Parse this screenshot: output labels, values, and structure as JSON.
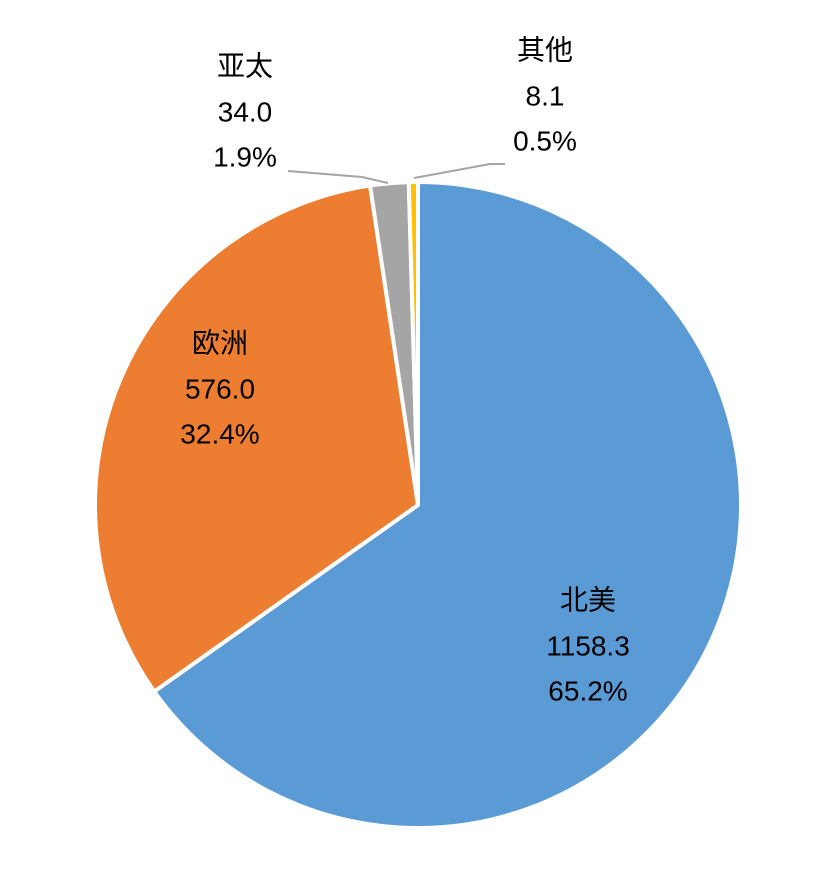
{
  "chart_data": {
    "type": "pie",
    "categories": [
      "北美",
      "欧洲",
      "亚太",
      "其他"
    ],
    "values": [
      1158.3,
      576.0,
      34.0,
      8.1
    ],
    "value_labels": [
      "1158.3",
      "576.0",
      "34.0",
      "8.1"
    ],
    "percent_labels": [
      "65.2%",
      "32.4%",
      "1.9%",
      "0.5%"
    ],
    "colors": [
      "#5b9bd5",
      "#ed7d31",
      "#a5a5a5",
      "#ffc000"
    ]
  }
}
